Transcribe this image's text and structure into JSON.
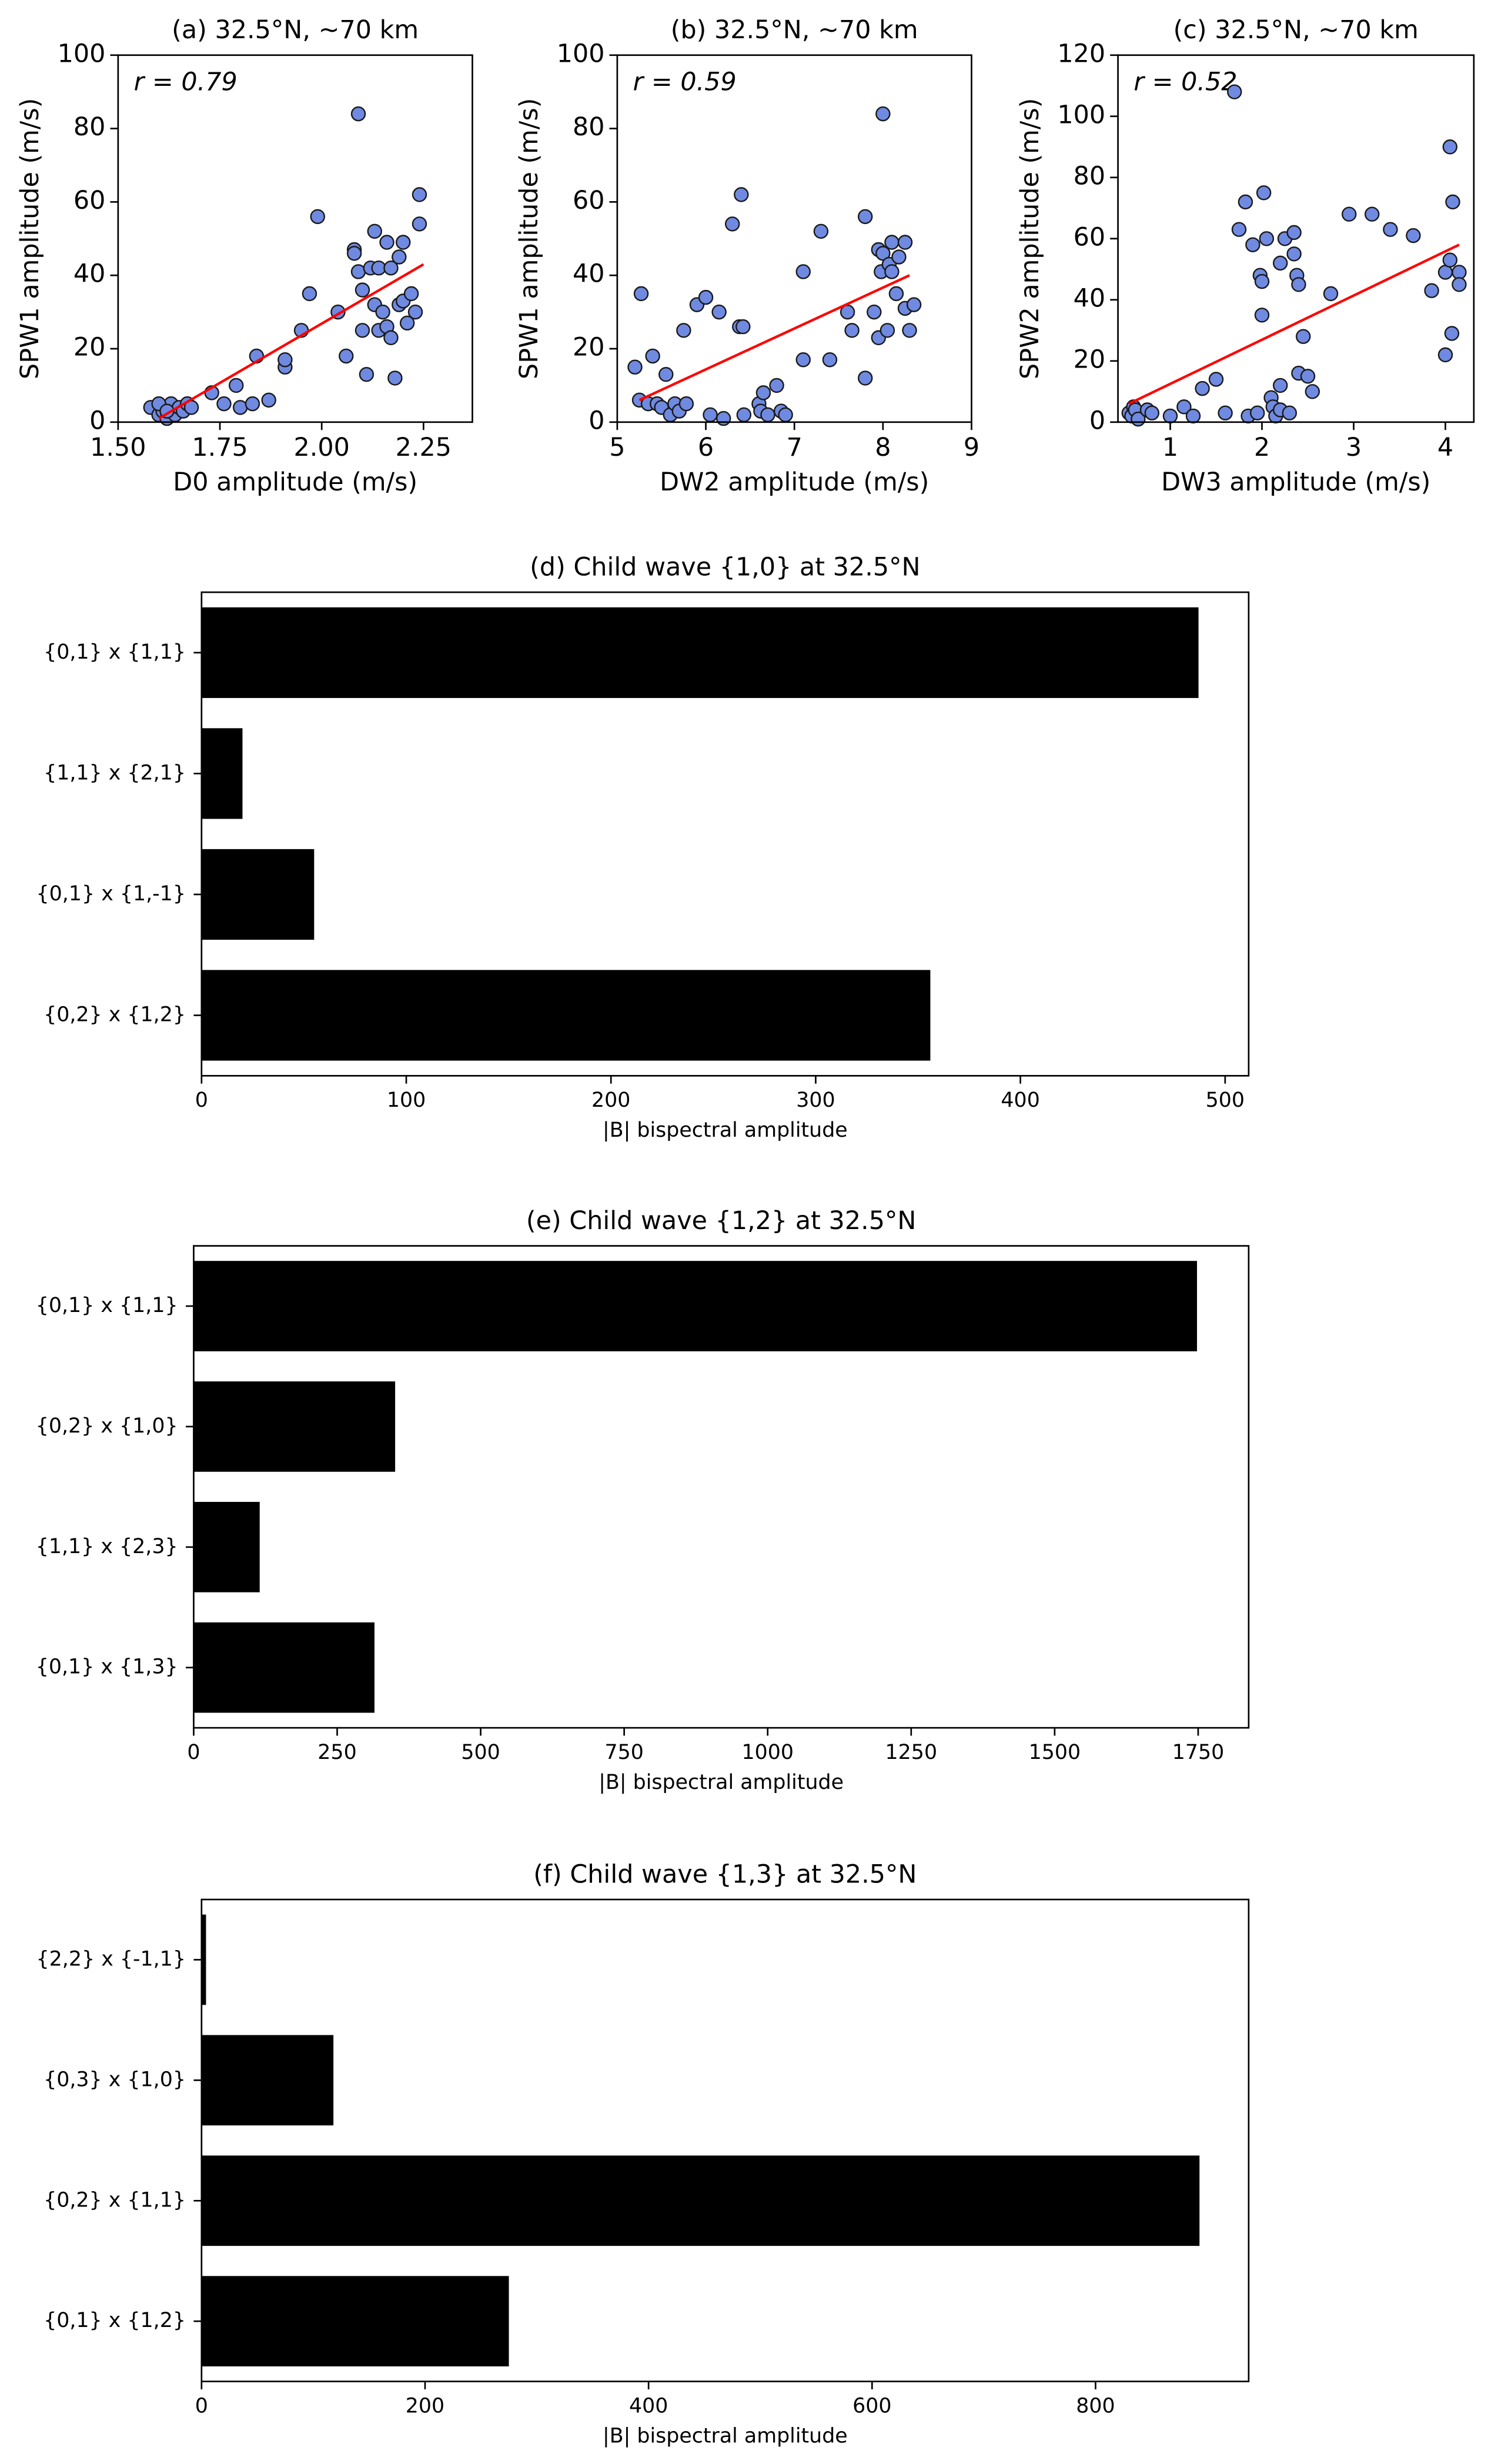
{
  "chart_data": [
    {
      "type": "scatter",
      "title": "(a) 32.5°N, ~70 km",
      "xlabel": "D0 amplitude (m/s)",
      "ylabel": "SPW1 amplitude (m/s)",
      "annotation": "r = 0.79",
      "color": "#6f8ae0",
      "series": [
        {
          "x": [
            1.58,
            1.6,
            1.61,
            1.62,
            1.63,
            1.64,
            1.65,
            1.66,
            1.67,
            1.68,
            1.6,
            1.62,
            1.73,
            1.76,
            1.79,
            1.8,
            1.83,
            1.84,
            1.87,
            1.91,
            1.91,
            1.95,
            1.97,
            1.99,
            2.04,
            2.06,
            2.08,
            2.08,
            2.09,
            2.09,
            2.1,
            2.1,
            2.11,
            2.12,
            2.13,
            2.13,
            2.14,
            2.14,
            2.15,
            2.16,
            2.16,
            2.17,
            2.17,
            2.18,
            2.19,
            2.19,
            2.2,
            2.2,
            2.21,
            2.22,
            2.23,
            2.24,
            2.24
          ],
          "values": [
            4,
            2,
            3,
            1,
            5,
            2,
            4,
            3,
            5,
            4,
            5,
            3,
            8,
            5,
            10,
            4,
            5,
            18,
            6,
            15,
            17,
            25,
            35,
            56,
            30,
            18,
            47,
            46,
            84,
            41,
            36,
            25,
            13,
            42,
            32,
            52,
            25,
            42,
            30,
            49,
            26,
            23,
            42,
            12,
            32,
            45,
            49,
            33,
            27,
            35,
            30,
            62,
            54
          ]
        }
      ],
      "trend": {
        "color": "#ff0000",
        "x": [
          1.6,
          2.25
        ],
        "y": [
          1,
          43
        ]
      },
      "xlim": [
        1.5,
        2.37
      ],
      "ylim": [
        0,
        100
      ],
      "xticks": [
        {
          "value": 1.5,
          "label": "1.50"
        },
        1.75,
        {
          "value": 2,
          "label": "2.00"
        },
        2.25
      ],
      "yticks": [
        0,
        20,
        40,
        60,
        80,
        100
      ]
    },
    {
      "type": "scatter",
      "title": "(b) 32.5°N, ~70 km",
      "xlabel": "DW2 amplitude (m/s)",
      "ylabel": "SPW1 amplitude (m/s)",
      "annotation": "r = 0.59",
      "color": "#6f8ae0",
      "series": [
        {
          "x": [
            5.2,
            5.25,
            5.27,
            5.35,
            5.4,
            5.45,
            5.5,
            5.55,
            5.6,
            5.65,
            5.7,
            5.75,
            5.78,
            5.9,
            6,
            6.05,
            6.15,
            6.2,
            6.3,
            6.38,
            6.4,
            6.42,
            6.43,
            6.6,
            6.62,
            6.65,
            6.7,
            6.8,
            6.85,
            6.9,
            7.1,
            7.1,
            7.3,
            7.4,
            7.6,
            7.65,
            7.8,
            7.8,
            7.9,
            7.95,
            7.95,
            7.98,
            8,
            8,
            8.05,
            8.07,
            8.1,
            8.1,
            8.15,
            8.18,
            8.25,
            8.25,
            8.3,
            8.35
          ],
          "values": [
            15,
            6,
            35,
            5,
            18,
            5,
            4,
            13,
            2,
            5,
            3,
            25,
            5,
            32,
            34,
            2,
            30,
            1,
            54,
            26,
            62,
            26,
            2,
            5,
            3,
            8,
            2,
            10,
            3,
            2,
            41,
            17,
            52,
            17,
            30,
            25,
            56,
            12,
            30,
            47,
            23,
            41,
            46,
            84,
            25,
            43,
            49,
            41,
            35,
            45,
            49,
            31,
            25,
            32
          ]
        }
      ],
      "trend": {
        "color": "#ff0000",
        "x": [
          5.25,
          8.3
        ],
        "y": [
          6,
          40
        ]
      },
      "xlim": [
        5,
        9
      ],
      "ylim": [
        0,
        100
      ],
      "xticks": [
        5,
        6,
        7,
        8,
        9
      ],
      "yticks": [
        0,
        20,
        40,
        60,
        80,
        100
      ]
    },
    {
      "type": "scatter",
      "title": "(c) 32.5°N, ~70 km",
      "xlabel": "DW3 amplitude (m/s)",
      "ylabel": "SPW2 amplitude (m/s)",
      "annotation": "r = 0.52",
      "color": "#6f8ae0",
      "series": [
        {
          "x": [
            0.55,
            0.58,
            0.6,
            0.62,
            0.65,
            0.75,
            0.8,
            1,
            1.15,
            1.25,
            1.35,
            1.5,
            1.6,
            1.7,
            1.75,
            1.82,
            1.85,
            1.9,
            1.95,
            1.98,
            2,
            2,
            2.02,
            2.05,
            2.1,
            2.12,
            2.15,
            2.2,
            2.2,
            2.2,
            2.25,
            2.3,
            2.35,
            2.35,
            2.38,
            2.4,
            2.4,
            2.45,
            2.5,
            2.55,
            2.75,
            2.95,
            3.2,
            3.4,
            3.65,
            3.85,
            4,
            4,
            4.05,
            4.05,
            4.07,
            4.08,
            4.15,
            4.15
          ],
          "values": [
            3,
            2,
            5,
            4,
            1,
            4,
            3,
            2,
            5,
            2,
            11,
            14,
            3,
            108,
            63,
            72,
            2,
            58,
            3,
            48,
            46,
            35,
            75,
            60,
            8,
            5,
            2,
            4,
            12,
            52,
            60,
            3,
            62,
            55,
            48,
            45,
            16,
            28,
            15,
            10,
            42,
            68,
            68,
            63,
            61,
            43,
            49,
            22,
            53,
            90,
            29,
            72,
            49,
            45
          ]
        }
      ],
      "trend": {
        "color": "#ff0000",
        "x": [
          0.55,
          4.15
        ],
        "y": [
          6,
          58
        ]
      },
      "xlim": [
        0.43,
        4.31
      ],
      "ylim": [
        0,
        120
      ],
      "xticks": [
        1,
        2,
        3,
        4
      ],
      "yticks": [
        0,
        20,
        40,
        60,
        80,
        100,
        120
      ]
    },
    {
      "type": "bar",
      "title": "(d) Child wave {1,0} at 32.5°N",
      "xlabel": "|B| bispectral amplitude",
      "color": "#000000",
      "categories": [
        "{0,1} x {1,1}",
        "{1,1} x {2,1}",
        "{0,1} x {1,-1}",
        "{0,2} x {1,2}"
      ],
      "values": [
        487,
        20,
        55,
        356
      ],
      "xlim": [
        0,
        511.5
      ],
      "xticks": [
        0,
        100,
        200,
        300,
        400,
        500
      ]
    },
    {
      "type": "bar",
      "title": "(e) Child wave {1,2} at 32.5°N",
      "xlabel": "|B| bispectral amplitude",
      "color": "#000000",
      "categories": [
        "{0,1} x {1,1}",
        "{0,2} x {1,0}",
        "{1,1} x {2,3}",
        "{0,1} x {1,3}"
      ],
      "values": [
        1748,
        351,
        115,
        315
      ],
      "xlim": [
        0,
        1838
      ],
      "xticks": [
        0,
        250,
        500,
        750,
        1000,
        1250,
        1500,
        1750
      ]
    },
    {
      "type": "bar",
      "title": "(f) Child wave {1,3} at 32.5°N",
      "xlabel": "|B| bispectral amplitude",
      "color": "#000000",
      "categories": [
        "{2,2} x {-1,1}",
        "{0,3} x {1,0}",
        "{0,2} x {1,1}",
        "{0,1} x {1,2}"
      ],
      "values": [
        4,
        118,
        893,
        275
      ],
      "xlim": [
        0,
        937
      ],
      "xticks": [
        0,
        200,
        400,
        600,
        800
      ]
    }
  ]
}
